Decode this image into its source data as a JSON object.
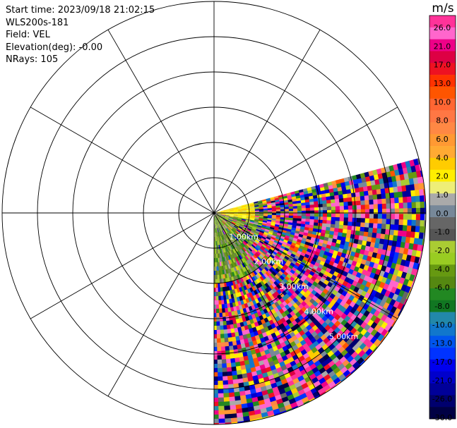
{
  "info": {
    "start_time": "Start time: 2023/09/18 21:02:15",
    "instrument": "WLS200s-181",
    "field": "Field: VEL",
    "elevation": "Elevation(deg): -0.00",
    "nrays": "NRays: 105"
  },
  "chart_data": {
    "type": "heatmap",
    "projection": "polar-ppi",
    "field": "VEL",
    "range_rings_km": [
      "1.00km",
      "2.00km",
      "3.00km",
      "4.00km",
      "5.00km"
    ],
    "range_ring_km_values": [
      1,
      2,
      3,
      4,
      5
    ],
    "max_range_km": 6,
    "azimuth_coverage_deg": [
      75,
      180
    ],
    "colorbar": {
      "unit": "m/s",
      "ticks": [
        "26.0",
        "21.0",
        "17.0",
        "13.0",
        "10.0",
        "8.0",
        "6.0",
        "4.0",
        "2.0",
        "1.0",
        "0.0",
        "-1.0",
        "-2.0",
        "-4.0",
        "-6.0",
        "-8.0",
        "-10.0",
        "-13.0",
        "-17.0",
        "-21.0",
        "-26.0",
        "-30.0"
      ],
      "colors": [
        "#ff3399",
        "#ff66cc",
        "#ee0088",
        "#dd0044",
        "#ee1122",
        "#ff3300",
        "#ff5500",
        "#ff6633",
        "#ff7744",
        "#ff8844",
        "#ff9933",
        "#ffaa33",
        "#ffcc00",
        "#ffee00",
        "#eeee77",
        "#aaaaaa",
        "#778899",
        "#666666",
        "#555555",
        "#aacc33",
        "#99cc22",
        "#669911",
        "#558811",
        "#228822",
        "#117722",
        "#2288aa",
        "#1177cc",
        "#0055ee",
        "#0033ff",
        "#0000ee",
        "#0000cc",
        "#000099",
        "#00006e",
        "#000044"
      ]
    }
  }
}
